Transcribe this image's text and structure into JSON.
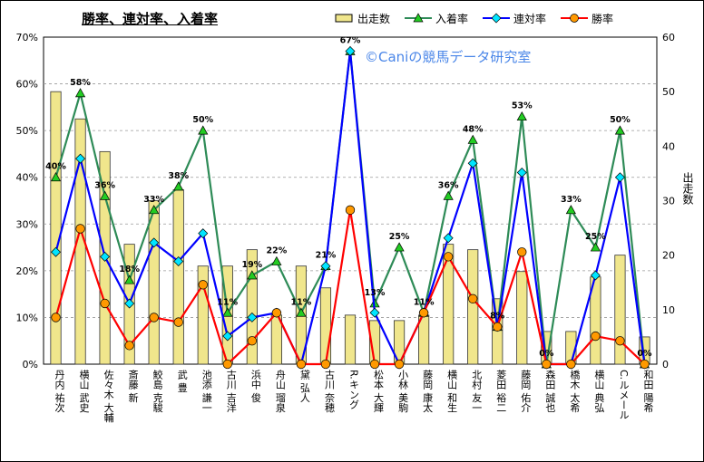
{
  "chart_data": {
    "type": "bar+line",
    "title": "勝率、連対率、入着率",
    "watermark": "©Caniの競馬データ研究室",
    "y2label": "出走数",
    "legend_position": "top-right",
    "grid": true,
    "y_left": {
      "min": 0,
      "max": 70,
      "step": 10,
      "unit": "%"
    },
    "y_right": {
      "min": 0,
      "max": 60,
      "step": 10
    },
    "categories": [
      "丹内 祐次",
      "横山 武史",
      "佐々木 大輔",
      "斎藤 新",
      "鮫島 克駿",
      "武 豊",
      "池添 謙一",
      "古川 吉洋",
      "浜中 俊",
      "舟山 瑠泉",
      "黛 弘人",
      "古川 奈穂",
      "R.キング",
      "松本 大輝",
      "小林 美駒",
      "藤岡 康太",
      "横山 和生",
      "北村 友一",
      "菱田 裕二",
      "藤岡 佑介",
      "森田 誠也",
      "橋木 太希",
      "横山 典弘",
      "C.ルメール",
      "和田 陽希"
    ],
    "series": [
      {
        "name": "出走数",
        "type": "bar",
        "axis": "right",
        "color": "#f0e68c",
        "values": [
          50,
          45,
          39,
          22,
          30,
          32,
          18,
          18,
          21,
          9,
          18,
          14,
          9,
          8,
          8,
          9,
          22,
          21,
          12,
          17,
          6,
          6,
          16,
          20,
          5
        ]
      },
      {
        "name": "入着率",
        "type": "line",
        "axis": "left",
        "color": "#2e8b57",
        "values": [
          40,
          58,
          36,
          18,
          33,
          38,
          50,
          11,
          19,
          22,
          11,
          21,
          67,
          13,
          25,
          11,
          36,
          48,
          8,
          53,
          0,
          33,
          25,
          50,
          0
        ]
      },
      {
        "name": "連対率",
        "type": "line",
        "axis": "left",
        "color": "#0000ff",
        "values": [
          24,
          44,
          23,
          13,
          26,
          22,
          28,
          6,
          10,
          11,
          0,
          21,
          67,
          11,
          0,
          11,
          27,
          43,
          8,
          41,
          0,
          0,
          19,
          40,
          0
        ]
      },
      {
        "name": "勝率",
        "type": "line",
        "axis": "left",
        "color": "#ff0000",
        "values": [
          10,
          29,
          13,
          4,
          10,
          9,
          17,
          0,
          5,
          11,
          0,
          0,
          33,
          0,
          0,
          11,
          23,
          14,
          8,
          24,
          0,
          0,
          6,
          5,
          0
        ]
      }
    ],
    "data_labels": [
      "40%",
      "58%",
      "36%",
      "18%",
      "33%",
      "38%",
      "50%",
      "11%",
      "19%",
      "22%",
      "11%",
      "21%",
      "67%",
      "13%",
      "25%",
      "11%",
      "36%",
      "48%",
      "8%",
      "53%",
      "0%",
      "33%",
      "25%",
      "50%",
      "0%"
    ]
  },
  "colors": {
    "grid": "#9a9a9a",
    "plot_bg": "#ffffff"
  }
}
